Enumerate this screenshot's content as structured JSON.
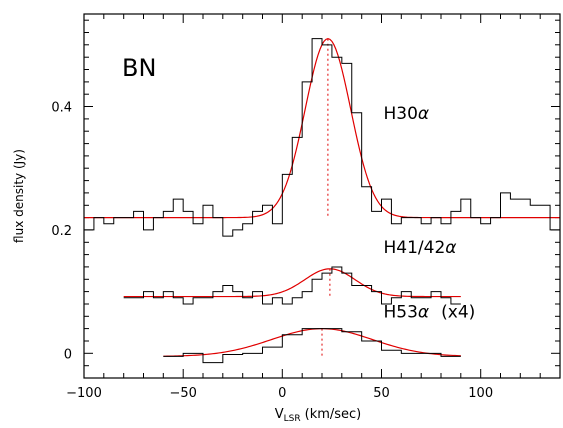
{
  "chart_data": {
    "type": "line",
    "xlabel_main": "V",
    "xlabel_sub": "LSR",
    "xlabel_unit": "(km/sec)",
    "ylabel": "flux density (Jy)",
    "xlim": [
      -100,
      140
    ],
    "ylim": [
      -0.04,
      0.55
    ],
    "xticks": [
      -100,
      -50,
      0,
      50,
      100
    ],
    "yticks": [
      0,
      0.2,
      0.4
    ],
    "source_label": "BN",
    "series": [
      {
        "name": "H30α",
        "label_main": "H30",
        "label_greek": "α",
        "label_suffix": "",
        "scale": 1,
        "hist_x": [
          -100,
          -95,
          -90,
          -85,
          -80,
          -75,
          -70,
          -65,
          -60,
          -55,
          -50,
          -45,
          -40,
          -35,
          -30,
          -25,
          -20,
          -15,
          -10,
          -5,
          0,
          5,
          10,
          15,
          20,
          25,
          30,
          35,
          40,
          45,
          50,
          55,
          60,
          65,
          70,
          75,
          80,
          85,
          90,
          95,
          100,
          105,
          110,
          115,
          120,
          125,
          130,
          135,
          140
        ],
        "hist_y": [
          0.2,
          0.22,
          0.21,
          0.22,
          0.22,
          0.23,
          0.2,
          0.22,
          0.23,
          0.25,
          0.23,
          0.21,
          0.24,
          0.22,
          0.19,
          0.2,
          0.21,
          0.23,
          0.24,
          0.21,
          0.29,
          0.35,
          0.44,
          0.51,
          0.5,
          0.48,
          0.47,
          0.39,
          0.27,
          0.23,
          0.25,
          0.21,
          0.22,
          0.22,
          0.21,
          0.22,
          0.21,
          0.23,
          0.25,
          0.22,
          0.21,
          0.22,
          0.26,
          0.25,
          0.25,
          0.24,
          0.24,
          0.2
        ],
        "gauss": {
          "offset": 0.22,
          "amp": 0.29,
          "center": 23,
          "fwhm": 27,
          "xmin": -100,
          "xmax": 140
        },
        "peak_marker_x": 23
      },
      {
        "name": "H41/42α",
        "label_main": "H41/42",
        "label_greek": "α",
        "label_suffix": "",
        "scale": 1,
        "hist_x": [
          -80,
          -75,
          -70,
          -65,
          -60,
          -55,
          -50,
          -45,
          -40,
          -35,
          -30,
          -25,
          -20,
          -15,
          -10,
          -5,
          0,
          5,
          10,
          15,
          20,
          25,
          30,
          35,
          40,
          45,
          50,
          55,
          60,
          65,
          70,
          75,
          80,
          85,
          90
        ],
        "hist_y": [
          0.09,
          0.09,
          0.1,
          0.09,
          0.1,
          0.09,
          0.08,
          0.09,
          0.09,
          0.1,
          0.11,
          0.1,
          0.09,
          0.1,
          0.08,
          0.09,
          0.08,
          0.09,
          0.1,
          0.12,
          0.13,
          0.14,
          0.13,
          0.11,
          0.11,
          0.1,
          0.08,
          0.09,
          0.1,
          0.09,
          0.09,
          0.1,
          0.09,
          0.08
        ],
        "gauss": {
          "offset": 0.092,
          "amp": 0.045,
          "center": 24,
          "fwhm": 30,
          "xmin": -80,
          "xmax": 90
        },
        "peak_marker_x": 24
      },
      {
        "name": "H53α (x4)",
        "label_main": "H53",
        "label_greek": "α",
        "label_suffix": "(x4)",
        "scale": 4,
        "hist_x": [
          -60,
          -50,
          -40,
          -30,
          -20,
          -10,
          0,
          10,
          20,
          30,
          40,
          50,
          60,
          70,
          80,
          90
        ],
        "hist_y": [
          -0.005,
          0.0,
          -0.015,
          -0.002,
          0.0,
          0.01,
          0.03,
          0.04,
          0.04,
          0.035,
          0.02,
          0.005,
          0.0,
          0.0,
          -0.005
        ],
        "gauss": {
          "offset": -0.005,
          "amp": 0.045,
          "center": 20,
          "fwhm": 60,
          "xmin": -60,
          "xmax": 90
        },
        "peak_marker_x": 20
      }
    ]
  }
}
